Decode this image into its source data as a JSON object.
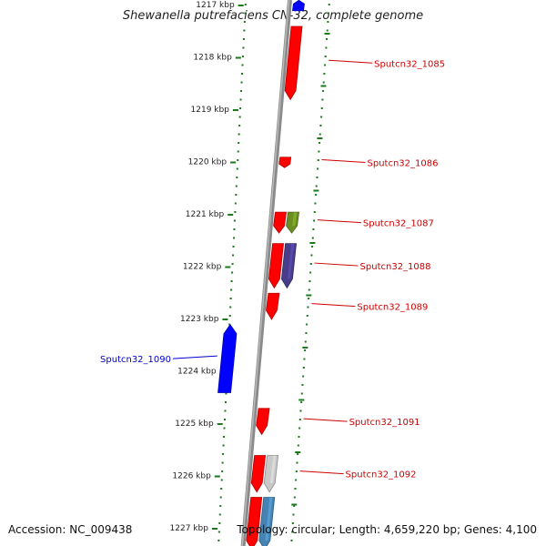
{
  "title": "Shewanella putrefaciens CN-32, complete genome",
  "footer": {
    "accession": "Accession: NC_009438",
    "summary": "Topology: circular; Length: 4,659,220 bp; Genes: 4,100"
  },
  "axis": {
    "unit": "kbp",
    "ticks": [
      "1217 kbp",
      "1218 kbp",
      "1219 kbp",
      "1220 kbp",
      "1221 kbp",
      "1222 kbp",
      "1223 kbp",
      "1224 kbp",
      "1225 kbp",
      "1226 kbp",
      "1227 kbp"
    ]
  },
  "colors": {
    "forward_gene": "#ff0000",
    "reverse_gene": "#0000ff",
    "label_forward": "#cc0000",
    "label_reverse": "#0000cc",
    "tick_marks": "#1a7a1a",
    "backbone": "#8a8a8a"
  },
  "genes": [
    {
      "label": "",
      "strand": "-",
      "track": "inner",
      "start_kbp": 1216.9,
      "end_kbp": 1217.1,
      "color": "#0000ff"
    },
    {
      "label": "Sputcn32_1085",
      "strand": "+",
      "track": "inner",
      "start_kbp": 1217.4,
      "end_kbp": 1218.8,
      "color": "#ff0000"
    },
    {
      "label": "Sputcn32_1086",
      "strand": "+",
      "track": "inner",
      "start_kbp": 1219.9,
      "end_kbp": 1220.1,
      "color": "#ff0000"
    },
    {
      "label": "Sputcn32_1087",
      "strand": "+",
      "track": "inner",
      "start_kbp": 1220.95,
      "end_kbp": 1221.35,
      "color": "#ff0000"
    },
    {
      "label": "",
      "strand": "+",
      "track": "outer",
      "start_kbp": 1220.95,
      "end_kbp": 1221.35,
      "color": "#6b8e23"
    },
    {
      "label": "Sputcn32_1088",
      "strand": "+",
      "track": "inner",
      "start_kbp": 1221.55,
      "end_kbp": 1222.4,
      "color": "#ff0000"
    },
    {
      "label": "",
      "strand": "+",
      "track": "outer",
      "start_kbp": 1221.55,
      "end_kbp": 1222.4,
      "color": "#483d8b"
    },
    {
      "label": "Sputcn32_1089",
      "strand": "+",
      "track": "inner",
      "start_kbp": 1222.5,
      "end_kbp": 1223.0,
      "color": "#ff0000"
    },
    {
      "label": "Sputcn32_1090",
      "strand": "-",
      "track": "reverse",
      "start_kbp": 1223.1,
      "end_kbp": 1224.4,
      "color": "#0000ff"
    },
    {
      "label": "Sputcn32_1091",
      "strand": "+",
      "track": "inner",
      "start_kbp": 1224.7,
      "end_kbp": 1225.2,
      "color": "#ff0000"
    },
    {
      "label": "Sputcn32_1092",
      "strand": "+",
      "track": "inner",
      "start_kbp": 1225.6,
      "end_kbp": 1226.3,
      "color": "#ff0000"
    },
    {
      "label": "",
      "strand": "+",
      "track": "outer",
      "start_kbp": 1225.6,
      "end_kbp": 1226.3,
      "color": "#c8c8c8"
    },
    {
      "label": "",
      "strand": "+",
      "track": "inner",
      "start_kbp": 1226.4,
      "end_kbp": 1227.4,
      "color": "#ff0000"
    },
    {
      "label": "",
      "strand": "+",
      "track": "outer",
      "start_kbp": 1226.4,
      "end_kbp": 1227.4,
      "color": "#4682b4"
    }
  ]
}
